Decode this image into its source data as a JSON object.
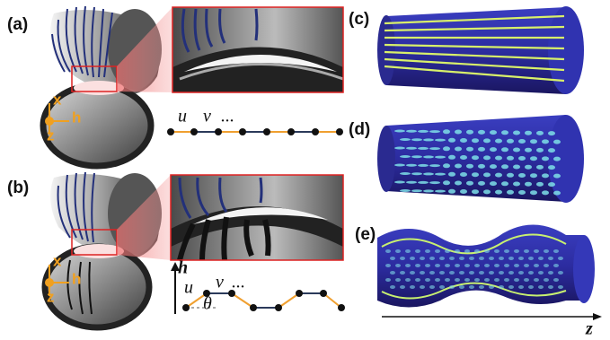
{
  "panels": {
    "a": "(a)",
    "b": "(b)",
    "c": "(c)",
    "d": "(d)",
    "e": "(e)"
  },
  "axes_a": {
    "x": "x",
    "h": "h",
    "z": "z"
  },
  "axes_b": {
    "x": "x",
    "h": "h",
    "z": "z"
  },
  "chain_a": {
    "u": "u",
    "v": "v",
    "more": "..."
  },
  "chain_b": {
    "h": "h",
    "u": "u",
    "v": "v",
    "more": "...",
    "theta": "θ"
  },
  "z_axis": "z"
}
